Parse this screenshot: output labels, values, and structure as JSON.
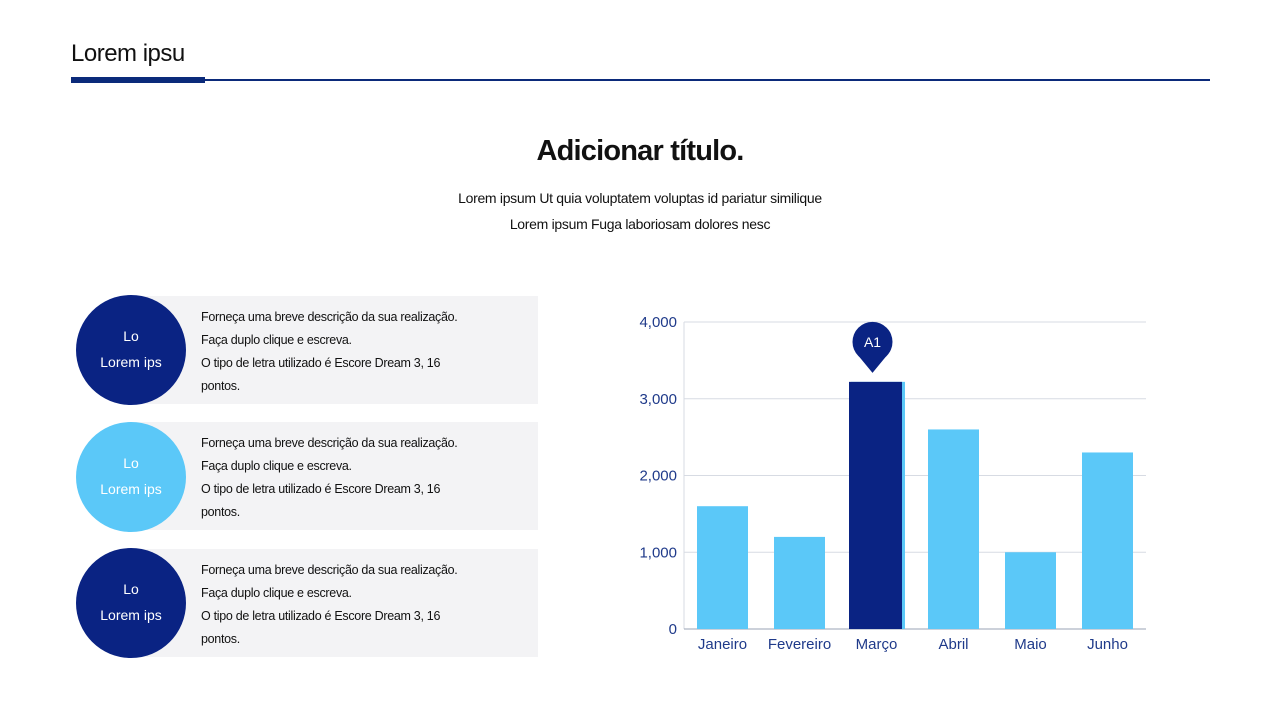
{
  "header": {
    "title": "Lorem ipsu"
  },
  "main": {
    "title": "Adicionar título.",
    "subtitle_lines": [
      "Lorem ipsum Ut quia voluptatem voluptas id pariatur similique",
      "Lorem ipsum Fuga laboriosam dolores nesc"
    ]
  },
  "cards": [
    {
      "circle_line1": "Lo",
      "circle_line2": "Lorem ips",
      "circle_color": "#0a2383",
      "lines": [
        "Forneça uma breve descrição da sua realização.",
        "Faça duplo clique e escreva.",
        "O tipo de letra utilizado é Escore Dream 3, 16",
        "pontos."
      ]
    },
    {
      "circle_line1": "Lo",
      "circle_line2": "Lorem ips",
      "circle_color": "#5bc8f8",
      "lines": [
        "Forneça uma breve descrição da sua realização.",
        "Faça duplo clique e escreva.",
        "O tipo de letra utilizado é Escore Dream 3, 16",
        "pontos."
      ]
    },
    {
      "circle_line1": "Lo",
      "circle_line2": "Lorem ips",
      "circle_color": "#0a2383",
      "lines": [
        "Forneça uma breve descrição da sua realização.",
        "Faça duplo clique e escreva.",
        "O tipo de letra utilizado é Escore Dream 3, 16",
        "pontos."
      ]
    }
  ],
  "chart_data": {
    "type": "bar",
    "categories": [
      "Janeiro",
      "Fevereiro",
      "Março",
      "Abril",
      "Maio",
      "Junho"
    ],
    "values": [
      1600,
      1200,
      3220,
      2600,
      1000,
      2300
    ],
    "ylim": [
      0,
      4000
    ],
    "yticks": [
      0,
      1000,
      2000,
      3000,
      4000
    ],
    "ytick_labels": [
      "0",
      "1,000",
      "2,000",
      "3,000",
      "4,000"
    ],
    "highlight_index": 2,
    "highlight_label": "A1",
    "grid": true,
    "colors": {
      "bar": "#5bc8f8",
      "highlight": "#0a2383",
      "axis_text": "#1f3a8a",
      "grid": "#d7dbe3"
    }
  }
}
